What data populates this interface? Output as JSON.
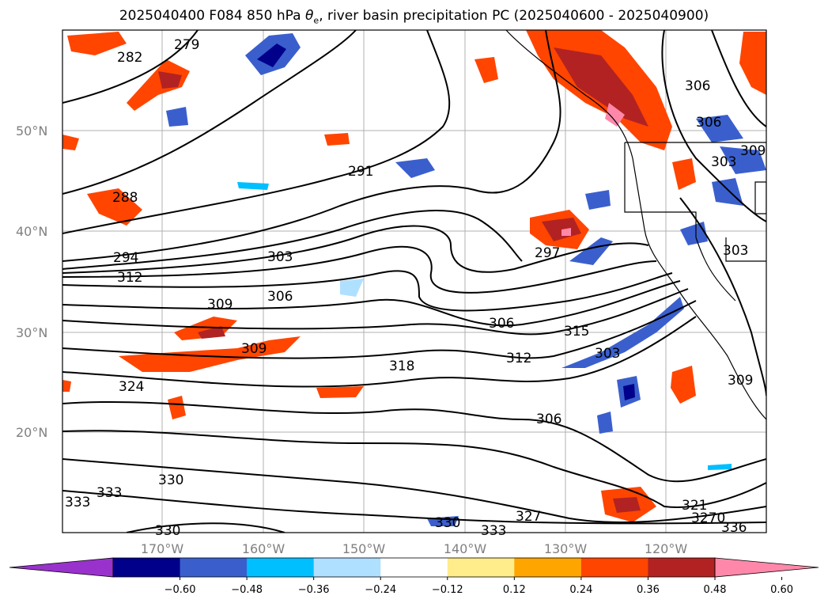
{
  "title_main": "2025040400 F084 850 hPa ",
  "title_symbol": "θ",
  "title_sub": "e",
  "title_rest": ", river basin precipitation PC (2025040600 - 2025040900)",
  "axes": {
    "lat_labels": [
      "50°N",
      "40°N",
      "30°N",
      "20°N"
    ],
    "lon_labels": [
      "170°W",
      "160°W",
      "150°W",
      "140°W",
      "130°W",
      "120°W"
    ]
  },
  "contour_labels": [
    "282",
    "279",
    "288",
    "291",
    "294",
    "312",
    "303",
    "309",
    "306",
    "309",
    "324",
    "318",
    "306",
    "312",
    "315",
    "303",
    "306",
    "297",
    "306",
    "306",
    "303",
    "309",
    "309",
    "303",
    "330",
    "333",
    "333",
    "330",
    "330",
    "333",
    "327",
    "321",
    "3270",
    "336"
  ],
  "colorbar": {
    "ticks": [
      "−0.60",
      "−0.48",
      "−0.36",
      "−0.24",
      "−0.12",
      "0.12",
      "0.24",
      "0.36",
      "0.48",
      "0.60"
    ],
    "colors": [
      "#9932cc",
      "#00008b",
      "#3a5fcd",
      "#00bfff",
      "#b0e0ff",
      "#ffffff",
      "#ffec8b",
      "#ffa500",
      "#ff4500",
      "#b22222",
      "#ff88aa"
    ]
  },
  "colors": {
    "land_outline": "#000000",
    "grid": "#b0b0b0"
  }
}
